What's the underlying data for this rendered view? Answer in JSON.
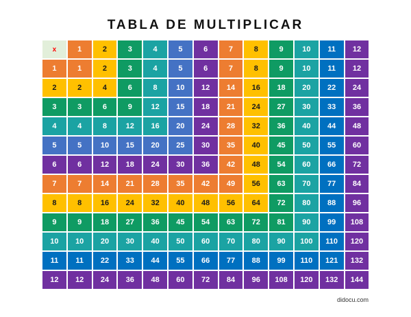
{
  "title": "TABLA DE MULTIPLICAR",
  "corner_symbol": "x",
  "footer": "didocu.com",
  "colors": {
    "1": "#ed7d31",
    "2": "#ffc000",
    "3": "#0f9b63",
    "4": "#1ba3a3",
    "5": "#4472c4",
    "6": "#7030a0",
    "7": "#ed7d31",
    "8": "#ffc000",
    "9": "#0f9b63",
    "10": "#1ba3a3",
    "11": "#0070c0",
    "12": "#7030a0"
  },
  "dark_text_groups": [
    2,
    8
  ],
  "header_row": [
    1,
    2,
    3,
    4,
    5,
    6,
    7,
    8,
    9,
    10,
    11,
    12
  ],
  "rows": [
    {
      "label": 1,
      "values": [
        1,
        2,
        3,
        4,
        5,
        6,
        7,
        8,
        9,
        10,
        11,
        12
      ]
    },
    {
      "label": 2,
      "values": [
        2,
        4,
        6,
        8,
        10,
        12,
        14,
        16,
        18,
        20,
        22,
        24
      ]
    },
    {
      "label": 3,
      "values": [
        3,
        6,
        9,
        12,
        15,
        18,
        21,
        24,
        27,
        30,
        33,
        36
      ]
    },
    {
      "label": 4,
      "values": [
        4,
        8,
        12,
        16,
        20,
        24,
        28,
        32,
        36,
        40,
        44,
        48
      ]
    },
    {
      "label": 5,
      "values": [
        5,
        10,
        15,
        20,
        25,
        30,
        35,
        40,
        45,
        50,
        55,
        60
      ]
    },
    {
      "label": 6,
      "values": [
        6,
        12,
        18,
        24,
        30,
        36,
        42,
        48,
        54,
        60,
        66,
        72
      ]
    },
    {
      "label": 7,
      "values": [
        7,
        14,
        21,
        28,
        35,
        42,
        49,
        56,
        63,
        70,
        77,
        84
      ]
    },
    {
      "label": 8,
      "values": [
        8,
        16,
        24,
        32,
        40,
        48,
        56,
        64,
        72,
        80,
        88,
        96
      ]
    },
    {
      "label": 9,
      "values": [
        9,
        18,
        27,
        36,
        45,
        54,
        63,
        72,
        81,
        90,
        99,
        108
      ]
    },
    {
      "label": 10,
      "values": [
        10,
        20,
        30,
        40,
        50,
        60,
        70,
        80,
        90,
        100,
        110,
        120
      ]
    },
    {
      "label": 11,
      "values": [
        11,
        22,
        33,
        44,
        55,
        66,
        77,
        88,
        99,
        110,
        121,
        132
      ]
    },
    {
      "label": 12,
      "values": [
        12,
        24,
        36,
        48,
        60,
        72,
        84,
        96,
        108,
        120,
        132,
        144
      ]
    }
  ]
}
